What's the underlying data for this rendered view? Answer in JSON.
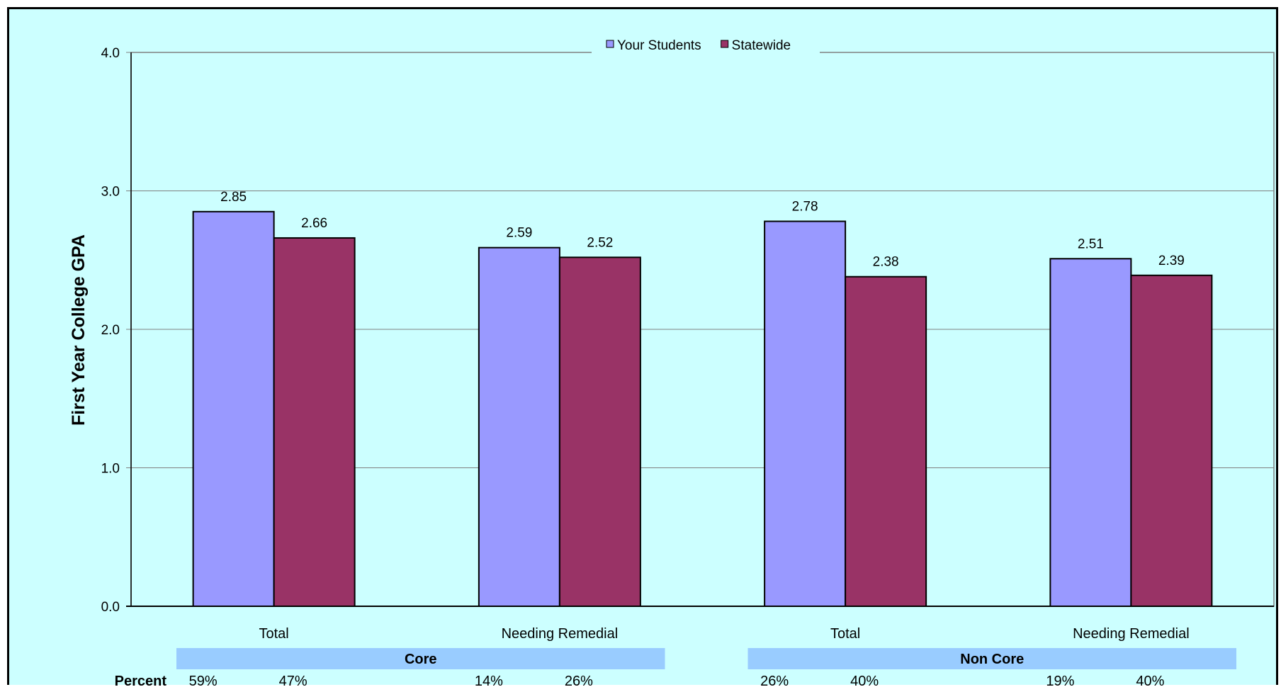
{
  "chart_data": {
    "type": "bar",
    "ylabel": "First Year College GPA",
    "ylim": [
      0,
      4
    ],
    "yticks": [
      "0.0",
      "1.0",
      "2.0",
      "3.0",
      "4.0"
    ],
    "grid": true,
    "legend_position": "top-center",
    "categories": [
      "Total",
      "Needing Remedial",
      "Total",
      "Needing Remedial"
    ],
    "groups": [
      {
        "label": "Core",
        "categories": [
          0,
          1
        ]
      },
      {
        "label": "Non Core",
        "categories": [
          2,
          3
        ]
      }
    ],
    "series": [
      {
        "name": "Your Students",
        "color": "#9999ff",
        "values": [
          2.85,
          2.59,
          2.78,
          2.51
        ],
        "labels": [
          "2.85",
          "2.59",
          "2.78",
          "2.51"
        ]
      },
      {
        "name": "Statewide",
        "color": "#993366",
        "values": [
          2.66,
          2.52,
          2.38,
          2.39
        ],
        "labels": [
          "2.66",
          "2.52",
          "2.38",
          "2.39"
        ]
      }
    ],
    "percent_row": {
      "title": "Percent",
      "values": [
        "59%",
        "47%",
        "14%",
        "26%",
        "26%",
        "40%",
        "19%",
        "40%"
      ]
    }
  }
}
